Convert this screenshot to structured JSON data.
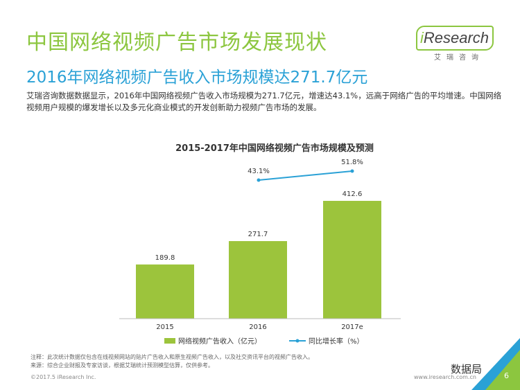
{
  "page": {
    "title": "中国网络视频广告市场发展现状",
    "subtitle": "2016年网络视频广告收入市场规模达271.7亿元",
    "description": "艾瑞咨询数据数据显示，2016年中国网络视频广告收入市场规模为271.7亿元，增速达43.1%，远高于网络广告的平均增速。中国网络视频用户规模的爆发增长以及多元化商业模式的开发创新助力视频广告市场的发展。",
    "logo_brand_prefix": "i",
    "logo_brand_rest": "Research",
    "logo_cn": "艾瑞咨询",
    "note1": "注释：此次统计数据仅包含在线视频网站的贴片广告收入和原生视频广告收入，以及社交资讯平台的视频广告收入。",
    "note2": "来源：综合企业财报及专家访谈，根据艾瑞统计预测模型估算，仅供参考。",
    "copyright": "©2017.5 iResearch Inc.",
    "site": "www.iresearch.com.cn",
    "page_number": "6",
    "watermark": "数据局",
    "colors": {
      "green": "#9cc43c",
      "blue": "#2aa1d6",
      "title_green": "#8cc63f"
    }
  },
  "chart_data": {
    "type": "bar",
    "title": "2015-2017年中国网络视频广告市场规模及预测",
    "categories": [
      "2015",
      "2016",
      "2017e"
    ],
    "series": [
      {
        "name": "网络视频广告收入（亿元）",
        "type": "bar",
        "values": [
          189.8,
          271.7,
          412.6
        ],
        "labels": [
          "189.8",
          "271.7",
          "412.6"
        ]
      },
      {
        "name": "同比增长率（%）",
        "type": "line",
        "values": [
          null,
          43.1,
          51.8
        ],
        "labels": [
          "",
          "43.1%",
          "51.8%"
        ]
      }
    ],
    "ylim": [
      0,
      450
    ],
    "grid": false,
    "legend": "bottom"
  }
}
